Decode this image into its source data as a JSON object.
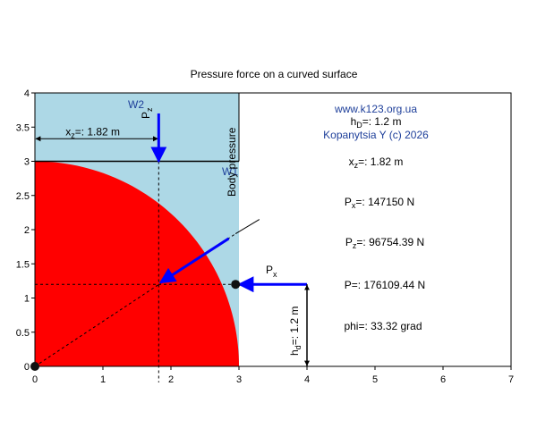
{
  "chart_data": {
    "type": "diagram",
    "title": "Pressure force on a curved surface",
    "xlim": [
      0,
      7
    ],
    "ylim": [
      0,
      4
    ],
    "x_ticks": [
      "0",
      "1",
      "2",
      "3",
      "4",
      "5",
      "6",
      "7"
    ],
    "y_ticks": [
      "0",
      "0.5",
      "1",
      "1.5",
      "2",
      "2.5",
      "3",
      "3.5",
      "4"
    ],
    "geometry": {
      "water_rect": {
        "x0": 0,
        "x1": 3,
        "y0": 0,
        "y1": 4
      },
      "quarter_circle": {
        "center": [
          0,
          0
        ],
        "radius": 3
      },
      "center_of_pressure": {
        "x": 2.95,
        "y": 1.2
      },
      "force_point": {
        "x": 1.82,
        "y": 1.2
      },
      "wall_line_y": 3,
      "xz_dim_y": 3.33,
      "hd_dim_x": 4.0,
      "px_arrow": {
        "from": 4.0,
        "to": 2.95,
        "y": 1.2
      },
      "pz_arrow": {
        "x": 1.82,
        "from": 3.7,
        "to": 3.0
      },
      "resultant_line": {
        "from": [
          0,
          0
        ],
        "to": [
          3.3,
          2.15
        ]
      }
    },
    "labels": {
      "site": "www.k123.org.ua",
      "hd": "h",
      "hd_sub": "D",
      "hd_val": "=: 1.2 m",
      "author": "Kopanytsia Y (c)  2026",
      "xz": "x",
      "xz_sub": "z",
      "xz_val": "=: 1.82 m",
      "px_line": "P",
      "px_sub": "x",
      "px_val": "=: 147150 N",
      "pz_line": "P",
      "pz_sub": "z",
      "pz_val": "=: 96754.39 N",
      "p_line": "P=: 176109.44 N",
      "phi_line": "phi=: 33.32 grad",
      "w2": "W2",
      "w1": "W1",
      "pz_arrow_label": "P",
      "pz_arrow_sub": "z",
      "px_arrow_label": "P",
      "px_arrow_sub": "x",
      "body_pressure": "Body pressure",
      "xz_dim": "x",
      "xz_dim_sub": "z",
      "xz_dim_val": "=: 1.82 m",
      "hd_dim": "h",
      "hd_dim_sub": "d",
      "hd_dim_val": "=: 1.2 m"
    },
    "colors": {
      "water": "#add8e6",
      "body": "#ff0000",
      "arrow": "#0000ff",
      "text_blue": "#1e3f9a"
    }
  }
}
